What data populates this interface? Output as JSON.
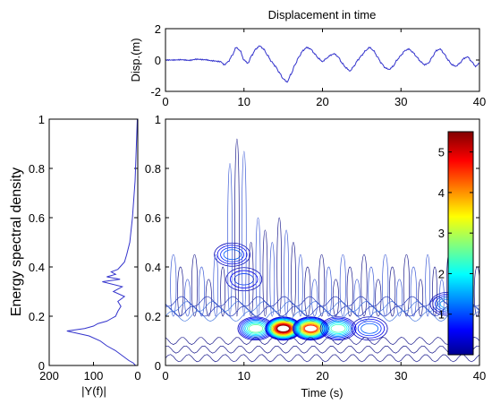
{
  "chart_data": [
    {
      "id": "time_panel",
      "type": "line",
      "title": "Displacement in time",
      "xlabel": "",
      "ylabel": "Disp.(m)",
      "xlim": [
        0,
        40
      ],
      "ylim": [
        -2,
        2
      ],
      "xticks": [
        0,
        10,
        20,
        30,
        40
      ],
      "yticks": [
        2,
        0,
        -2
      ],
      "series_color": "#3333cc",
      "x": [
        0,
        1,
        2,
        3,
        4,
        5,
        6,
        7,
        7.5,
        8,
        8.5,
        9,
        9.5,
        10,
        10.5,
        11,
        11.5,
        12,
        12.5,
        13,
        13.5,
        14,
        14.5,
        15,
        15.5,
        16,
        16.5,
        17,
        17.5,
        18,
        18.5,
        19,
        19.5,
        20,
        20.5,
        21,
        21.5,
        22,
        22.5,
        23,
        23.5,
        24,
        24.5,
        25,
        25.5,
        26,
        26.5,
        27,
        27.5,
        28,
        28.5,
        29,
        29.5,
        30,
        30.5,
        31,
        31.5,
        32,
        32.5,
        33,
        33.5,
        34,
        34.5,
        35,
        35.5,
        36,
        36.5,
        37,
        37.5,
        38,
        38.5,
        39,
        39.5,
        40
      ],
      "y": [
        0,
        0,
        0.02,
        -0.02,
        0.05,
        0.02,
        -0.05,
        -0.1,
        -0.3,
        -0.1,
        0.3,
        0.8,
        0.6,
        0,
        -0.2,
        0.3,
        0.7,
        0.9,
        0.7,
        0.3,
        -0.1,
        -0.4,
        -0.8,
        -1.2,
        -1.4,
        -0.9,
        -0.3,
        0.2,
        0.6,
        0.8,
        0.7,
        0.4,
        0.1,
        -0.1,
        0.1,
        0.3,
        0.4,
        0.2,
        -0.2,
        -0.5,
        -0.7,
        -0.4,
        0,
        0.3,
        0.6,
        0.8,
        0.6,
        0.2,
        -0.2,
        -0.5,
        -0.6,
        -0.4,
        0,
        0.3,
        0.6,
        0.7,
        0.5,
        0.2,
        -0.1,
        -0.3,
        -0.2,
        0.2,
        0.6,
        0.7,
        0.4,
        0,
        -0.3,
        -0.4,
        -0.2,
        0.1,
        0.2,
        -0.1,
        -0.4,
        -0.2
      ]
    },
    {
      "id": "spectrum_panel",
      "type": "line",
      "xlabel": "|Y(f)|",
      "ylabel": "Energy spectral density",
      "xlim": [
        200,
        0
      ],
      "ylim": [
        0,
        1
      ],
      "xticks": [
        200,
        100,
        0
      ],
      "yticks": [
        0,
        0.2,
        0.4,
        0.6,
        0.8,
        1
      ],
      "series_color": "#3333cc",
      "freq": [
        0,
        0.01,
        0.02,
        0.04,
        0.06,
        0.08,
        0.1,
        0.12,
        0.13,
        0.14,
        0.15,
        0.16,
        0.17,
        0.18,
        0.19,
        0.2,
        0.22,
        0.24,
        0.26,
        0.28,
        0.3,
        0.32,
        0.34,
        0.35,
        0.36,
        0.37,
        0.38,
        0.39,
        0.4,
        0.42,
        0.45,
        0.5,
        0.55,
        0.6,
        0.65,
        0.7,
        0.75,
        0.8,
        0.85,
        0.9,
        0.95,
        1.0
      ],
      "magnitude": [
        5,
        10,
        20,
        35,
        50,
        70,
        85,
        110,
        135,
        160,
        120,
        100,
        90,
        70,
        60,
        50,
        45,
        38,
        45,
        30,
        55,
        35,
        80,
        40,
        70,
        50,
        60,
        45,
        40,
        30,
        25,
        18,
        15,
        12,
        10,
        8,
        6,
        5,
        4,
        3,
        2,
        1
      ]
    },
    {
      "id": "time_frequency_panel",
      "type": "heatmap",
      "xlabel": "Time (s)",
      "ylabel": "",
      "xlim": [
        0,
        40
      ],
      "ylim": [
        0,
        1
      ],
      "xticks": [
        0,
        10,
        20,
        30,
        40
      ],
      "yticks": [
        0,
        0.2,
        0.4,
        0.6,
        0.8,
        1
      ],
      "colorbar_ticks": [
        1,
        2,
        3,
        4,
        5
      ],
      "colorbar_range": [
        0,
        5.5
      ],
      "colorbar_placement": "right-inside",
      "peaks": [
        {
          "t": 11.5,
          "f": 0.15,
          "energy": 2.6
        },
        {
          "t": 15,
          "f": 0.15,
          "energy": 5.5
        },
        {
          "t": 18.5,
          "f": 0.15,
          "energy": 4.6
        },
        {
          "t": 22,
          "f": 0.15,
          "energy": 2.4
        },
        {
          "t": 26,
          "f": 0.15,
          "energy": 1.2
        },
        {
          "t": 8.5,
          "f": 0.45,
          "energy": 1.2
        },
        {
          "t": 10,
          "f": 0.35,
          "energy": 1.0
        },
        {
          "t": 36,
          "f": 0.25,
          "energy": 1.6
        }
      ]
    }
  ]
}
